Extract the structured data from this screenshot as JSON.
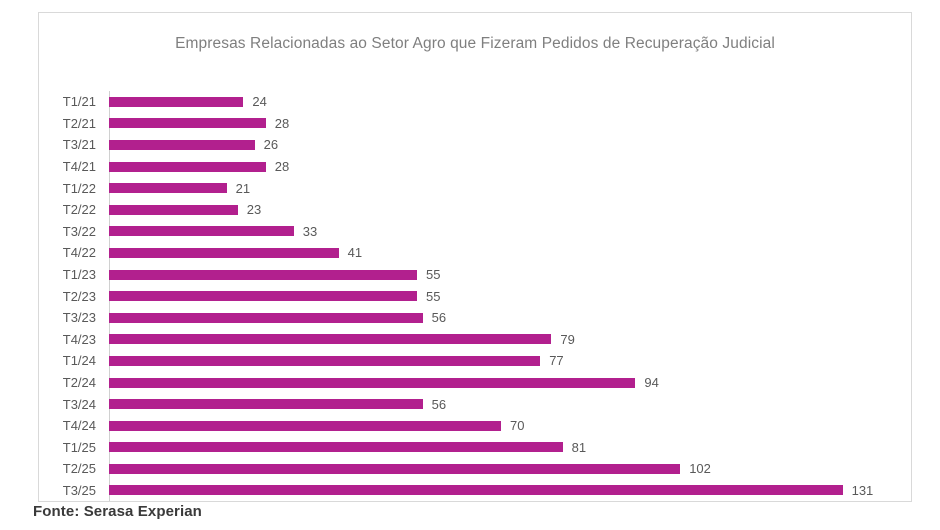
{
  "chart_data": {
    "type": "bar",
    "orientation": "horizontal",
    "title": "Empresas Relacionadas ao Setor Agro que Fizeram Pedidos de Recuperação Judicial",
    "categories": [
      "T1/21",
      "T2/21",
      "T3/21",
      "T4/21",
      "T1/22",
      "T2/22",
      "T3/22",
      "T4/22",
      "T1/23",
      "T2/23",
      "T3/23",
      "T4/23",
      "T1/24",
      "T2/24",
      "T3/24",
      "T4/24",
      "T1/25",
      "T2/25",
      "T3/25"
    ],
    "values": [
      24,
      28,
      26,
      28,
      21,
      23,
      33,
      41,
      55,
      55,
      56,
      79,
      77,
      94,
      56,
      70,
      81,
      102,
      131
    ],
    "xlabel": "",
    "ylabel": "",
    "xlim": [
      0,
      140
    ],
    "grid": false,
    "legend": "none",
    "data_labels": true,
    "bar_color": "#b2208e",
    "label_color": "#595959",
    "title_color": "#7f7f7f"
  },
  "footer": {
    "source_label": "Fonte: Serasa Experian"
  }
}
